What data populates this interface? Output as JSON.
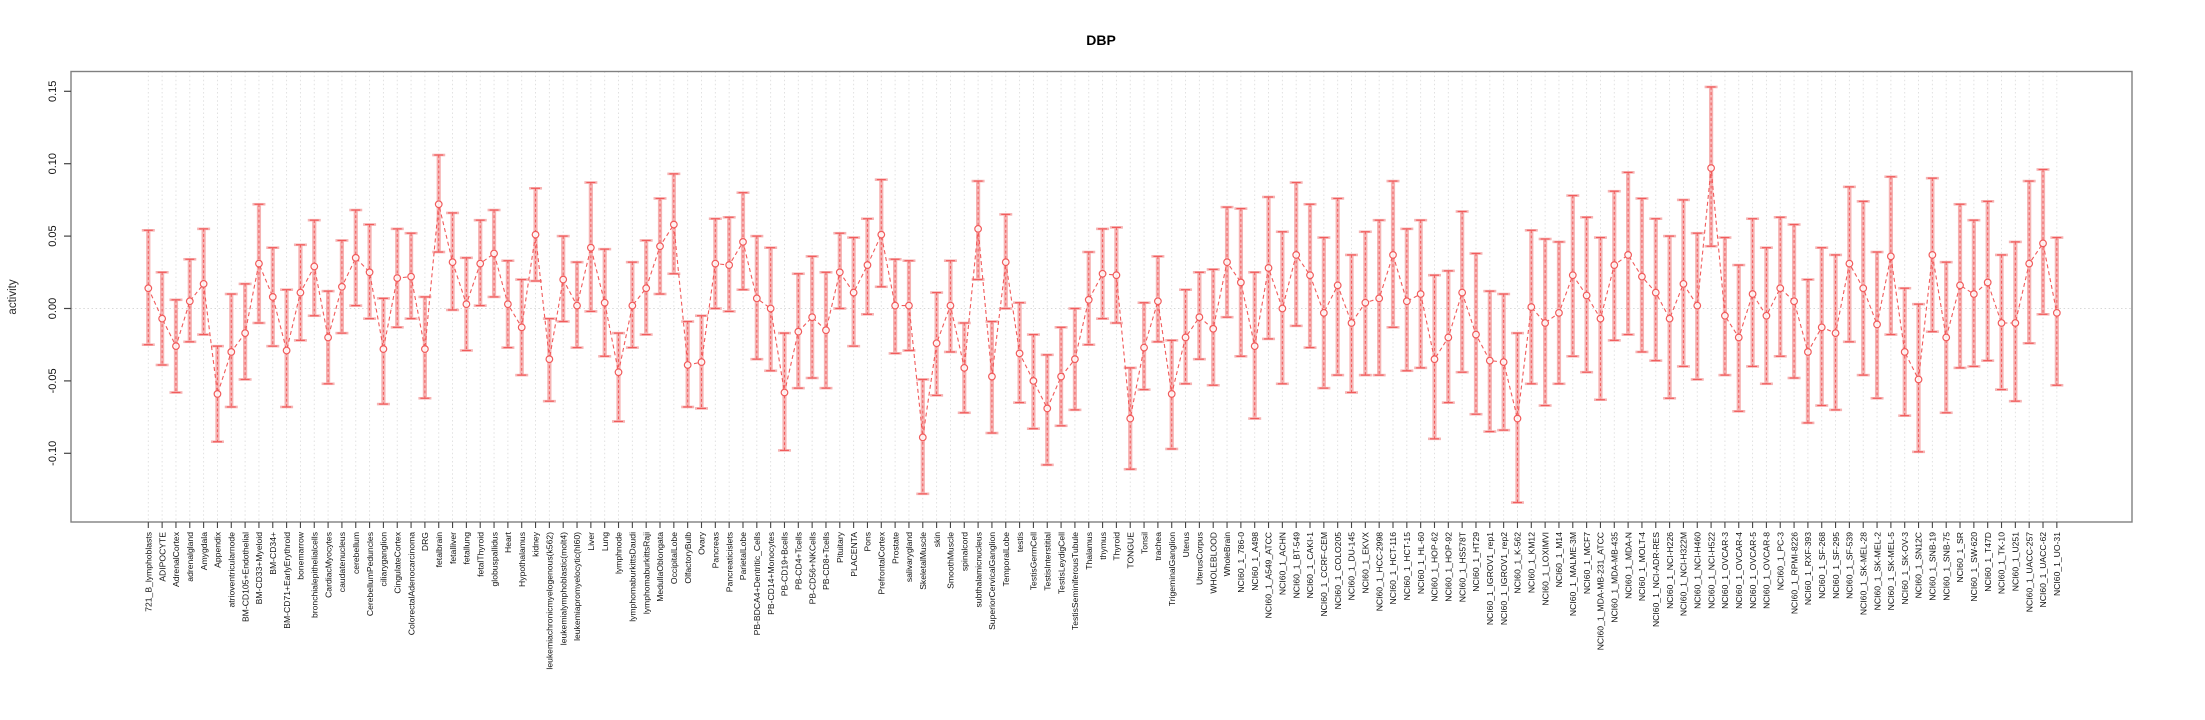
{
  "title": "DBP",
  "chart_data": {
    "type": "line",
    "title": "DBP",
    "subtitle": "",
    "xlabel": "",
    "ylabel": "activity",
    "ylim": [
      -0.145,
      0.16
    ],
    "yticks": [
      0.15,
      0.1,
      0.05,
      0.0,
      -0.05,
      -0.1
    ],
    "grid": "vertical dotted gridline per category, dotted horizontal line at 0",
    "legend_position": "none",
    "marker": "open-circle",
    "line_style": "dashed",
    "error_bars": "two-layer: wide pale band with caps plus thin dashed red bar with caps",
    "colors": {
      "series": "#f15b5b",
      "error_band": "#f6b3b3",
      "grid": "#dedede",
      "zero_line": "#d8d8d8",
      "axis_box": "#808080",
      "tick": "#444444",
      "text": "#000000",
      "background": "#ffffff"
    },
    "categories": [
      "721_B_lymphoblasts",
      "ADIPOCYTE",
      "AdrenalCortex",
      "adrenalgland",
      "Amygdala",
      "Appendix",
      "atrioventricularnode",
      "BM-CD105+Endothelial",
      "BM-CD33+Myeloid",
      "BM-CD34+",
      "BM-CD71+EarlyErythroid",
      "bonemarrow",
      "bronchialepithelialcells",
      "CardiacMyocytes",
      "caudatenucleus",
      "cerebellum",
      "CerebellumPeduncles",
      "ciliaryganglion",
      "CingulateCortex",
      "ColorectalAdenocarcinoma",
      "DRG",
      "fetalbrain",
      "fetalliver",
      "fetallung",
      "fetalThyroid",
      "globuspallidus",
      "Heart",
      "Hypothalamus",
      "kidney",
      "leukemiachronicmyelogenous(k562)",
      "leukemialymphoblastic(molt4)",
      "leukemiapromyelocytic(hl60)",
      "Liver",
      "Lung",
      "lymphnode",
      "lymphomaburkittsDaudi",
      "lymphomaburkittsRaji",
      "MedullaOblongata",
      "OccipitalLobe",
      "OlfactoryBulb",
      "Ovary",
      "Pancreas",
      "Pancreaticislets",
      "ParietalLobe",
      "PB-BDCA4+Dentritic_Cells",
      "PB-CD14+Monocytes",
      "PB-CD19+Bcells",
      "PB-CD4+Tcells",
      "PB-CD56+NKCells",
      "PB-CD8+Tcells",
      "Pituitary",
      "PLACENTA",
      "Pons",
      "PrefrontalCortex",
      "Prostate",
      "salivarygland",
      "SkeletalMuscle",
      "skin",
      "SmoothMuscle",
      "spinalcord",
      "subthalamicnucleus",
      "SuperiorCervicalGanglion",
      "TemporalLobe",
      "testis",
      "TestisGermCell",
      "TestisInterstitial",
      "TestisLeydigCell",
      "TestisSeminiferousTubule",
      "Thalamus",
      "thymus",
      "Thyroid",
      "TONGUE",
      "Tonsil",
      "trachea",
      "TrigeminalGanglion",
      "Uterus",
      "UterusCorpus",
      "WHOLEBLOOD",
      "WholeBrain",
      "NCI60_1_786-0",
      "NCI60_1_A498",
      "NCI60_1_A549_ATCC",
      "NCI60_1_ACHN",
      "NCI60_1_BT-549",
      "NCI60_1_CAKI-1",
      "NCI60_1_CCRF-CEM",
      "NCI60_1_COLO205",
      "NCI60_1_DU-145",
      "NCI60_1_EKVX",
      "NCI60_1_HCC-2998",
      "NCI60_1_HCT-116",
      "NCI60_1_HCT-15",
      "NCI60_1_HL-60",
      "NCI60_1_HOP-62",
      "NCI60_1_HOP-92",
      "NCI60_1_HS578T",
      "NCI60_1_HT29",
      "NCI60_1_IGROV1_rep1",
      "NCI60_1_IGROV1_rep2",
      "NCI60_1_K-562",
      "NCI60_1_KM12",
      "NCI60_1_LOXIMVI",
      "NCI60_1_M14",
      "NCI60_1_MALME-3M",
      "NCI60_1_MCF7",
      "NCI60_1_MDA-MB-231_ATCC",
      "NCI60_1_MDA-MB-435",
      "NCI60_1_MDA-N",
      "NCI60_1_MOLT-4",
      "NCI60_1_NCI-ADR-RES",
      "NCI60_1_NCI-H226",
      "NCI60_1_NCI-H322M",
      "NCI60_1_NCI-H460",
      "NCI60_1_NCI-H522",
      "NCI60_1_OVCAR-3",
      "NCI60_1_OVCAR-4",
      "NCI60_1_OVCAR-5",
      "NCI60_1_OVCAR-8",
      "NCI60_1_PC-3",
      "NCI60_1_RPMI-8226",
      "NCI60_1_RXF-393",
      "NCI60_1_SF-268",
      "NCI60_1_SF-295",
      "NCI60_1_SF-539",
      "NCI60_1_SK-MEL-28",
      "NCI60_1_SK-MEL-2",
      "NCI60_1_SK-MEL-5",
      "NCI60_1_SK-OV-3",
      "NCI60_1_SN12C",
      "NCI60_1_SNB-19",
      "NCI60_1_SNB-75",
      "NCI60_1_SR",
      "NCI60_1_SW-620",
      "NCI60_1_T47D",
      "NCI60_1_TK-10",
      "NCI60_1_U251",
      "NCI60_1_UACC-257",
      "NCI60_1_UACC-62",
      "NCI60_1_UO-31"
    ],
    "series": [
      {
        "name": "activity",
        "values": [
          0.014,
          -0.007,
          -0.026,
          0.005,
          0.017,
          -0.059,
          -0.03,
          -0.017,
          0.031,
          0.008,
          -0.029,
          0.011,
          0.029,
          -0.02,
          0.015,
          0.035,
          0.025,
          -0.028,
          0.021,
          0.022,
          -0.028,
          0.072,
          0.032,
          0.003,
          0.031,
          0.038,
          0.003,
          -0.013,
          0.051,
          -0.035,
          0.02,
          0.002,
          0.042,
          0.004,
          -0.044,
          0.002,
          0.014,
          0.043,
          0.058,
          -0.039,
          -0.037,
          0.031,
          0.03,
          0.046,
          0.007,
          0.0,
          -0.058,
          -0.016,
          -0.006,
          -0.015,
          0.025,
          0.011,
          0.03,
          0.051,
          0.002,
          0.002,
          -0.089,
          -0.024,
          0.002,
          -0.041,
          0.055,
          -0.047,
          0.032,
          -0.031,
          -0.05,
          -0.069,
          -0.047,
          -0.035,
          0.006,
          0.024,
          0.023,
          -0.076,
          -0.027,
          0.005,
          -0.059,
          -0.02,
          -0.006,
          -0.014,
          0.032,
          0.018,
          -0.026,
          0.028,
          0.0,
          0.037,
          0.023,
          -0.003,
          0.016,
          -0.01,
          0.004,
          0.007,
          0.037,
          0.005,
          0.01,
          -0.035,
          -0.02,
          0.011,
          -0.018,
          -0.036,
          -0.037,
          -0.076,
          0.001,
          -0.01,
          -0.003,
          0.023,
          0.009,
          -0.007,
          0.03,
          0.037,
          0.022,
          0.011,
          -0.007,
          0.017,
          0.002,
          0.097,
          -0.005,
          -0.02,
          0.01,
          -0.005,
          0.014,
          0.005,
          -0.03,
          -0.013,
          -0.017,
          0.031,
          0.014,
          -0.011,
          0.036,
          -0.03,
          -0.049,
          0.037,
          -0.02,
          0.016,
          0.01,
          0.018,
          -0.01,
          -0.01,
          0.031,
          0.045,
          -0.003
        ],
        "err_lo": [
          -0.025,
          -0.039,
          -0.058,
          -0.023,
          -0.018,
          -0.092,
          -0.068,
          -0.049,
          -0.01,
          -0.026,
          -0.068,
          -0.022,
          -0.005,
          -0.052,
          -0.017,
          0.002,
          -0.007,
          -0.066,
          -0.013,
          -0.007,
          -0.062,
          0.039,
          -0.001,
          -0.029,
          0.002,
          0.008,
          -0.027,
          -0.046,
          0.019,
          -0.064,
          -0.009,
          -0.027,
          -0.002,
          -0.033,
          -0.078,
          -0.027,
          -0.018,
          0.01,
          0.024,
          -0.068,
          -0.069,
          0.0,
          -0.002,
          0.013,
          -0.035,
          -0.043,
          -0.098,
          -0.055,
          -0.048,
          -0.055,
          0.0,
          -0.026,
          -0.004,
          0.015,
          -0.031,
          -0.029,
          -0.128,
          -0.06,
          -0.03,
          -0.072,
          0.02,
          -0.086,
          0.0,
          -0.065,
          -0.083,
          -0.108,
          -0.081,
          -0.07,
          -0.025,
          -0.007,
          -0.01,
          -0.111,
          -0.056,
          -0.023,
          -0.097,
          -0.052,
          -0.035,
          -0.053,
          -0.006,
          -0.033,
          -0.076,
          -0.021,
          -0.052,
          -0.012,
          -0.027,
          -0.055,
          -0.046,
          -0.058,
          -0.046,
          -0.046,
          -0.013,
          -0.043,
          -0.041,
          -0.09,
          -0.065,
          -0.044,
          -0.073,
          -0.085,
          -0.084,
          -0.134,
          -0.052,
          -0.067,
          -0.052,
          -0.033,
          -0.044,
          -0.063,
          -0.022,
          -0.018,
          -0.03,
          -0.036,
          -0.062,
          -0.04,
          -0.049,
          0.043,
          -0.046,
          -0.071,
          -0.04,
          -0.052,
          -0.033,
          -0.048,
          -0.079,
          -0.067,
          -0.07,
          -0.023,
          -0.046,
          -0.062,
          -0.018,
          -0.074,
          -0.099,
          -0.016,
          -0.072,
          -0.041,
          -0.04,
          -0.036,
          -0.056,
          -0.064,
          -0.024,
          -0.004,
          -0.053
        ],
        "err_hi": [
          0.054,
          0.025,
          0.006,
          0.034,
          0.055,
          -0.026,
          0.01,
          0.017,
          0.072,
          0.042,
          0.013,
          0.044,
          0.061,
          0.012,
          0.047,
          0.068,
          0.058,
          0.007,
          0.055,
          0.052,
          0.008,
          0.106,
          0.066,
          0.035,
          0.061,
          0.068,
          0.033,
          0.02,
          0.083,
          -0.007,
          0.05,
          0.032,
          0.087,
          0.041,
          -0.017,
          0.032,
          0.047,
          0.076,
          0.093,
          -0.009,
          -0.005,
          0.062,
          0.063,
          0.08,
          0.05,
          0.042,
          -0.017,
          0.024,
          0.036,
          0.025,
          0.052,
          0.049,
          0.062,
          0.089,
          0.034,
          0.033,
          -0.049,
          0.011,
          0.033,
          -0.01,
          0.088,
          -0.009,
          0.065,
          0.004,
          -0.018,
          -0.032,
          -0.013,
          0.0,
          0.039,
          0.055,
          0.056,
          -0.041,
          0.004,
          0.036,
          -0.022,
          0.013,
          0.025,
          0.027,
          0.07,
          0.069,
          0.025,
          0.077,
          0.053,
          0.087,
          0.072,
          0.049,
          0.076,
          0.037,
          0.053,
          0.061,
          0.088,
          0.055,
          0.061,
          0.023,
          0.026,
          0.067,
          0.038,
          0.012,
          0.01,
          -0.017,
          0.054,
          0.048,
          0.046,
          0.078,
          0.063,
          0.049,
          0.081,
          0.094,
          0.076,
          0.062,
          0.05,
          0.075,
          0.052,
          0.153,
          0.049,
          0.03,
          0.062,
          0.042,
          0.063,
          0.058,
          0.02,
          0.042,
          0.037,
          0.084,
          0.074,
          0.039,
          0.091,
          0.014,
          0.003,
          0.09,
          0.032,
          0.072,
          0.061,
          0.074,
          0.037,
          0.046,
          0.088,
          0.096,
          0.049
        ]
      }
    ]
  }
}
